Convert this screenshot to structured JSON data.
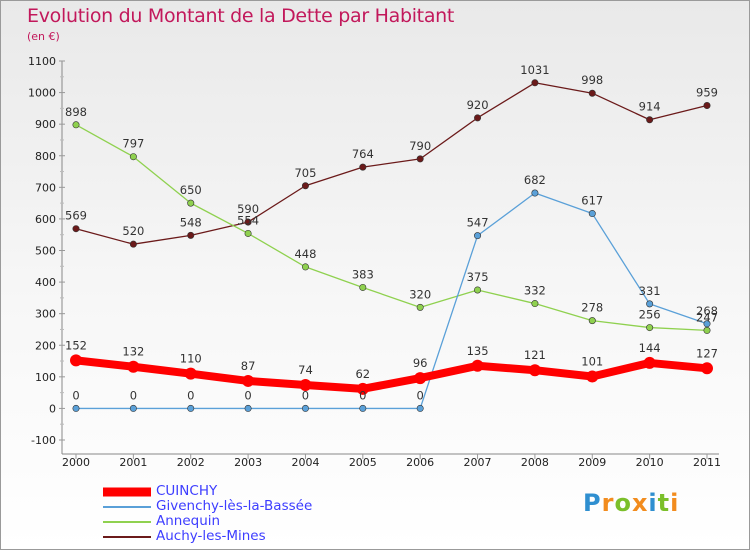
{
  "chart_data": {
    "type": "line",
    "title": "Evolution du Montant de la Dette par Habitant",
    "subtitle": "(en €)",
    "x": [
      "2000",
      "2001",
      "2002",
      "2003",
      "2004",
      "2005",
      "2006",
      "2007",
      "2008",
      "2009",
      "2010",
      "2011"
    ],
    "ylim": [
      -100,
      1100
    ],
    "yticks": [
      "-100",
      "0",
      "100",
      "200",
      "300",
      "400",
      "500",
      "600",
      "700",
      "800",
      "900",
      "1000",
      "1100"
    ],
    "grid": false,
    "legend_position": "bottom-left",
    "series": [
      {
        "name": "Auchy-les-Mines",
        "color": "#6b1a1a",
        "values": [
          569,
          520,
          548,
          590,
          705,
          764,
          790,
          920,
          1031,
          998,
          914,
          959
        ],
        "labels": [
          "569",
          "520",
          "548",
          "590",
          "705",
          "764",
          "790",
          "920",
          "1031",
          "998",
          "914",
          "959"
        ]
      },
      {
        "name": "Annequin",
        "color": "#8fd14f",
        "values": [
          898,
          797,
          650,
          554,
          448,
          383,
          320,
          375,
          332,
          278,
          256,
          247
        ],
        "labels": [
          "898",
          "797",
          "650",
          "554",
          "448",
          "383",
          "320",
          "375",
          "332",
          "278",
          "256",
          "247"
        ]
      },
      {
        "name": "Givenchy-lès-la-Bassée",
        "color": "#5aa0d8",
        "values": [
          0,
          0,
          0,
          0,
          0,
          0,
          0,
          547,
          682,
          617,
          331,
          268
        ],
        "labels": [
          "0",
          "0",
          "0",
          "0",
          "0",
          "0",
          "0",
          "547",
          "682",
          "617",
          "331",
          "268"
        ]
      },
      {
        "name": "CUINCHY",
        "color": "#ff0000",
        "values": [
          152,
          132,
          110,
          87,
          74,
          62,
          96,
          135,
          121,
          101,
          144,
          127
        ],
        "labels": [
          "152",
          "132",
          "110",
          "87",
          "74",
          "62",
          "96",
          "135",
          "121",
          "101",
          "144",
          "127"
        ]
      }
    ],
    "legend_order": [
      "CUINCHY",
      "Givenchy-lès-la-Bassée",
      "Annequin",
      "Auchy-les-Mines"
    ]
  },
  "logo": {
    "letters": [
      "P",
      "r",
      "o",
      "x",
      "i",
      "t",
      "i"
    ],
    "colors": [
      "#2f8fd0",
      "#f28c1e",
      "#7bbf2a",
      "#f28c1e",
      "#2f8fd0",
      "#7bbf2a",
      "#f28c1e"
    ]
  }
}
